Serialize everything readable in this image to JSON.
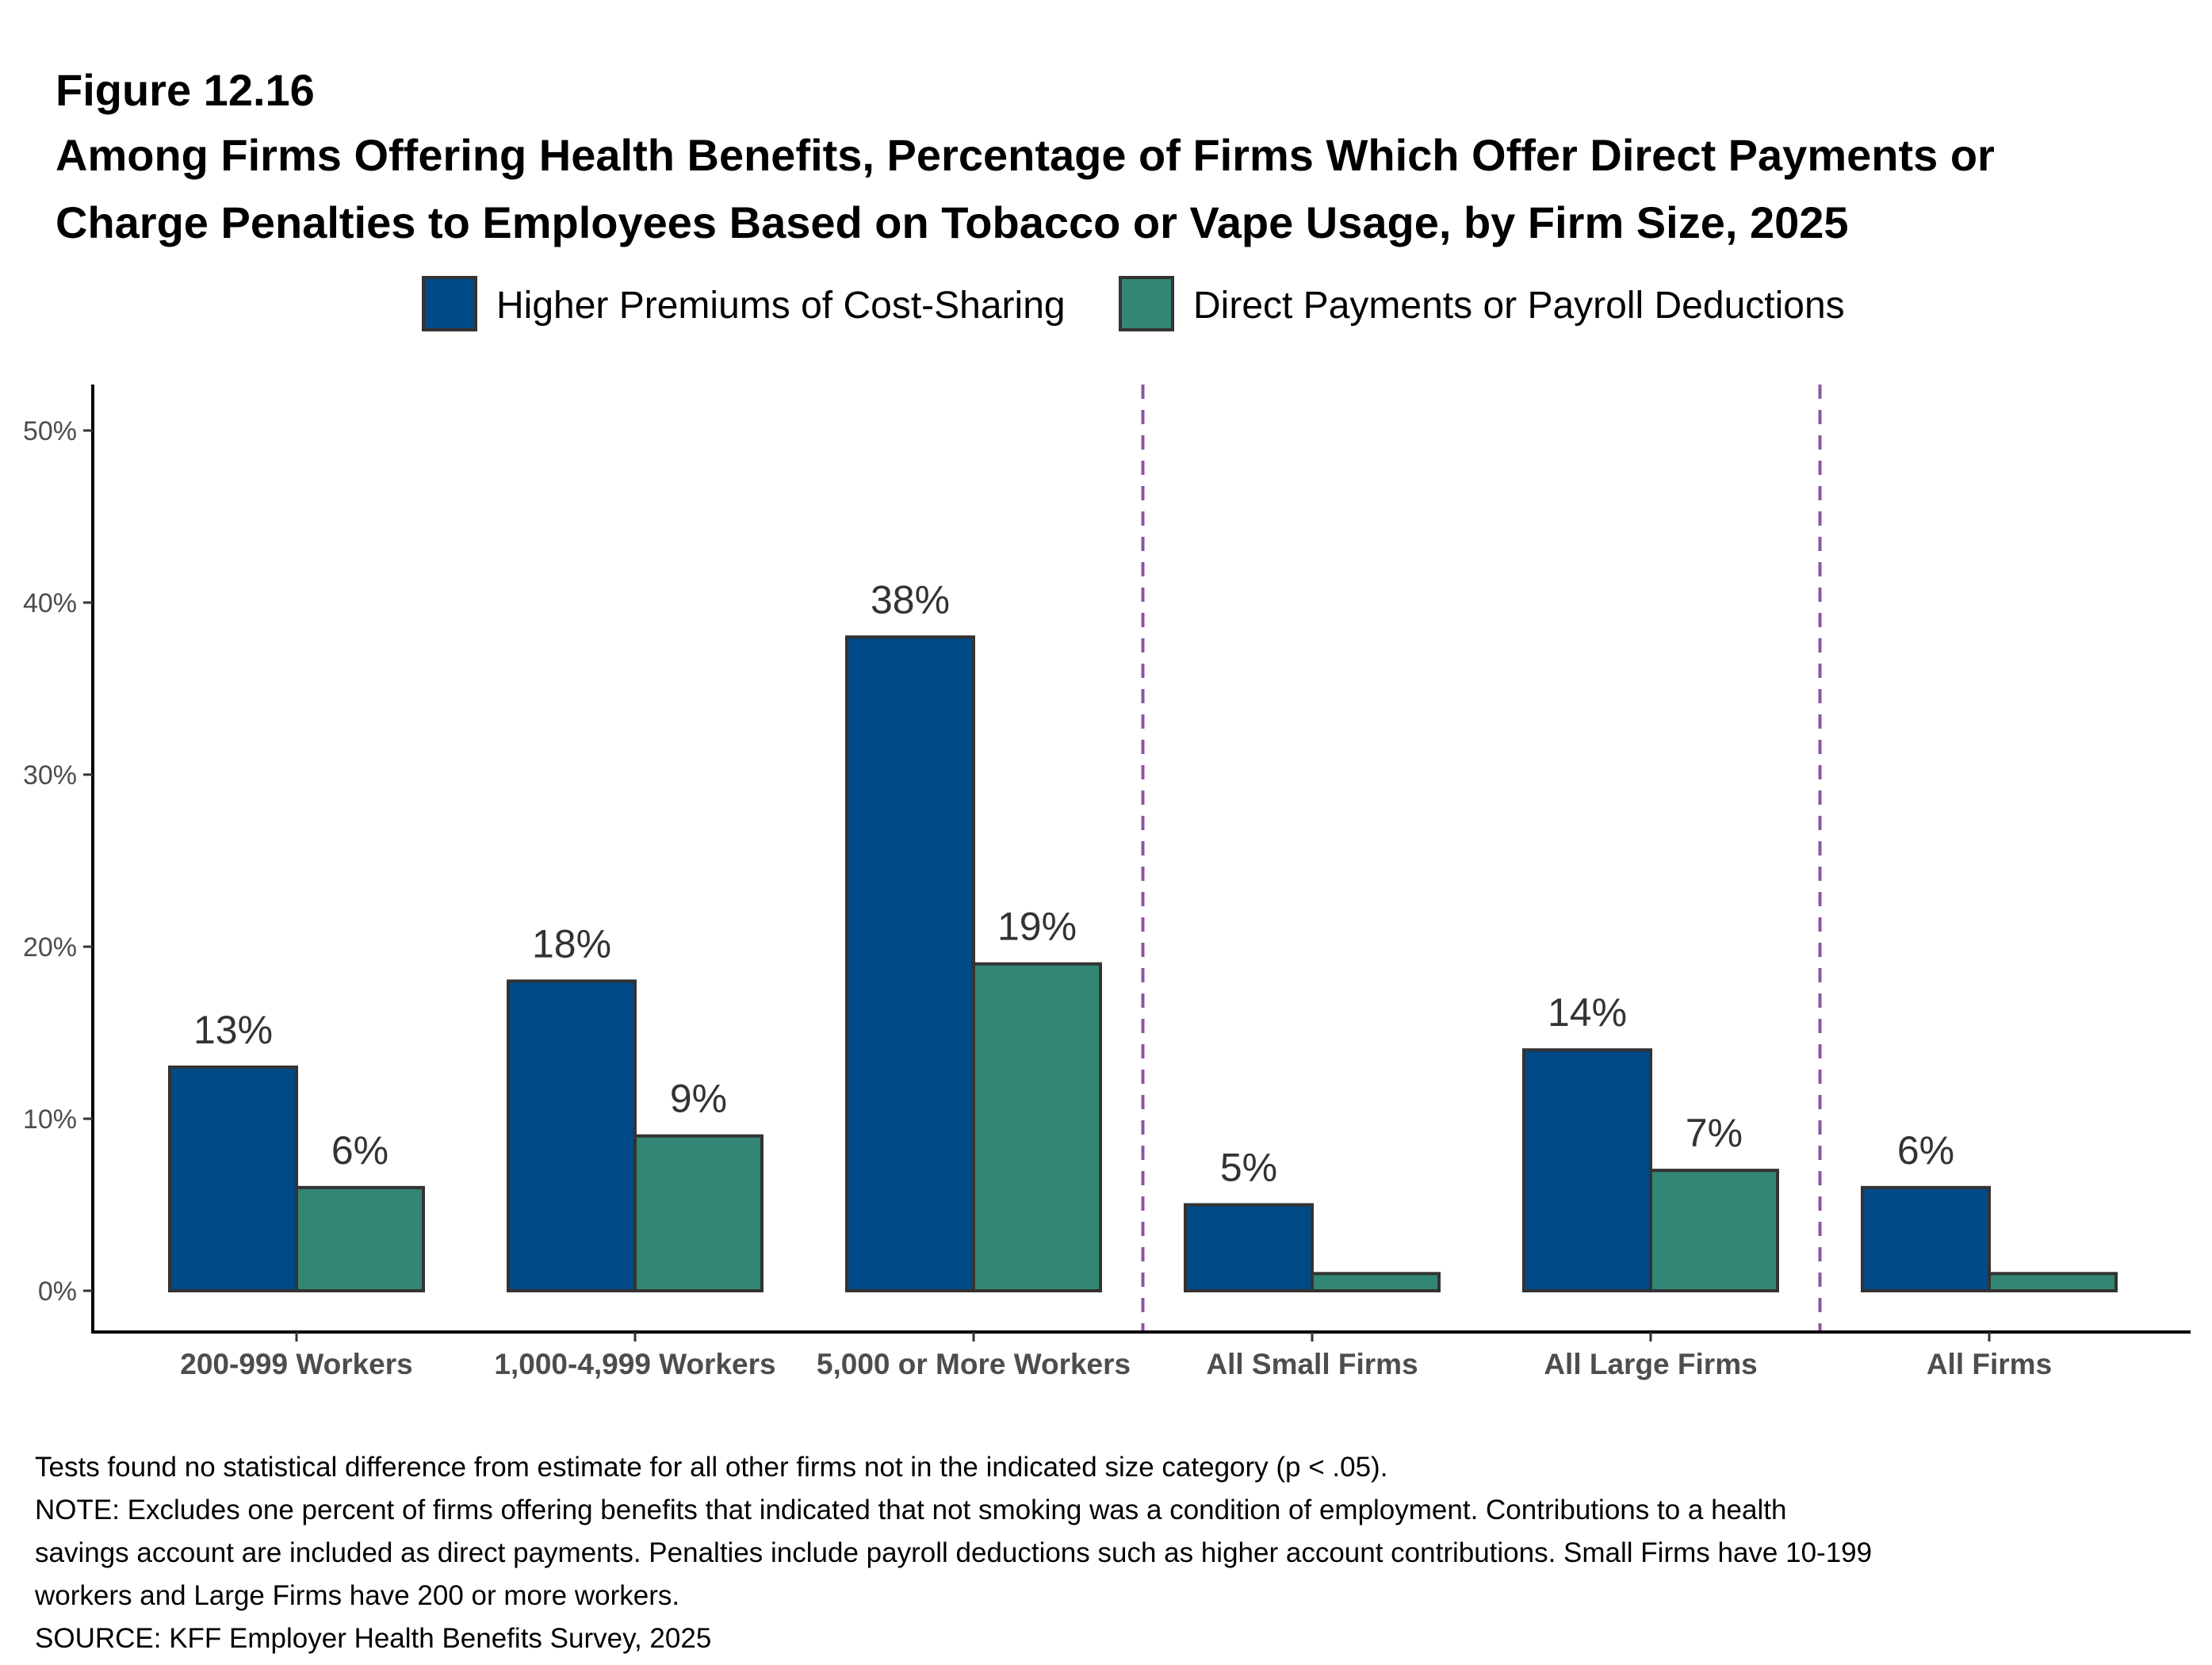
{
  "figure_label": "Figure 12.16",
  "title_lines": [
    "Among Firms Offering Health Benefits, Percentage of Firms Which Offer Direct Payments or",
    "Charge Penalties to Employees Based on Tobacco or Vape Usage, by Firm Size, 2025"
  ],
  "notes": [
    "Tests found no statistical difference from estimate for all other firms not in the indicated size category (p < .05).",
    "NOTE: Excludes one percent of firms offering benefits that indicated that not smoking was a condition of employment. Contributions to a health",
    "savings account are included as direct payments. Penalties include payroll deductions such as higher account contributions.  Small Firms have 10-199",
    "workers and Large Firms have 200 or more workers.",
    "SOURCE: KFF Employer Health Benefits Survey, 2025"
  ],
  "chart_data": {
    "type": "bar",
    "categories": [
      "200-999 Workers",
      "1,000-4,999 Workers",
      "5,000 or More Workers",
      "All Small Firms",
      "All Large Firms",
      "All Firms"
    ],
    "series": [
      {
        "name": "Higher Premiums of Cost-Sharing",
        "color": "#004a87",
        "values": [
          13,
          18,
          38,
          5,
          14,
          6
        ],
        "labels": [
          "13%",
          "18%",
          "38%",
          "5%",
          "14%",
          "6%"
        ]
      },
      {
        "name": "Direct Payments or Payroll Deductions",
        "color": "#338673",
        "values": [
          6,
          9,
          19,
          1,
          7,
          1
        ],
        "labels": [
          "6%",
          "9%",
          "19%",
          "",
          "7%",
          ""
        ]
      }
    ],
    "ylim": [
      0,
      50
    ],
    "yticks": [
      0,
      10,
      20,
      30,
      40,
      50
    ],
    "ytick_labels": [
      "0%",
      "10%",
      "20%",
      "30%",
      "40%",
      "50%"
    ],
    "dividers_after_category_index": [
      2,
      4
    ],
    "divider_color": "#8c55a5",
    "legend_position": "top",
    "grid": false
  }
}
